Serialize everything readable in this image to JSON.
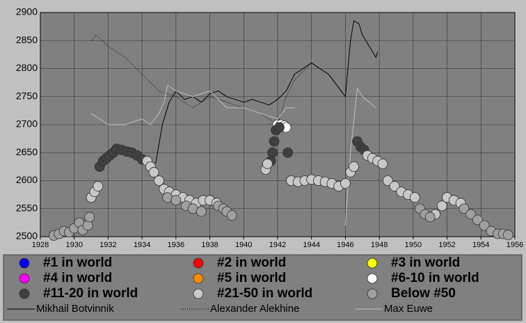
{
  "chart_data": {
    "type": "scatter",
    "xlim": [
      1928,
      1956
    ],
    "xticks": [
      1928,
      1930,
      1932,
      1934,
      1936,
      1938,
      1940,
      1942,
      1944,
      1946,
      1948,
      1950,
      1952,
      1954,
      1956
    ],
    "ylim": [
      2500,
      2900
    ],
    "yticks": [
      2500,
      2550,
      2600,
      2650,
      2700,
      2750,
      2800,
      2850,
      2900
    ],
    "grid": true,
    "series": [
      {
        "name": "#1 in world",
        "color": "#0000ff",
        "type": "scatter",
        "x": [],
        "y": []
      },
      {
        "name": "#2 in world",
        "color": "#ff0000",
        "type": "scatter",
        "x": [],
        "y": []
      },
      {
        "name": "#3 in world",
        "color": "#ffff00",
        "type": "scatter",
        "x": [],
        "y": []
      },
      {
        "name": "#4 in world",
        "color": "#ff00ff",
        "type": "scatter",
        "x": [],
        "y": []
      },
      {
        "name": "#5 in world",
        "color": "#ff8c00",
        "type": "scatter",
        "x": [],
        "y": []
      },
      {
        "name": "#6-10 in world",
        "color": "#ffffff",
        "type": "scatter",
        "x": [
          1942.0,
          1942.2,
          1942.4,
          1942.5
        ],
        "y": [
          2700,
          2700,
          2698,
          2695
        ]
      },
      {
        "name": "#11-20 in world",
        "color": "#404040",
        "type": "scatter",
        "x": [
          1931.5,
          1931.7,
          1931.9,
          1932.1,
          1932.3,
          1932.5,
          1932.8,
          1933.1,
          1933.4,
          1933.7,
          1934,
          1941.6,
          1941.7,
          1941.8,
          1941.9,
          1942.1,
          1942.6,
          1946.7,
          1946.9,
          1947.1
        ],
        "y": [
          2625,
          2635,
          2640,
          2645,
          2650,
          2657,
          2655,
          2652,
          2650,
          2645,
          2638,
          2635,
          2650,
          2670,
          2690,
          2695,
          2650,
          2670,
          2660,
          2655
        ]
      },
      {
        "name": "#21-50 in world",
        "color": "#c8c8c8",
        "type": "scatter",
        "x": [
          1931,
          1931.2,
          1931.4,
          1934.3,
          1934.5,
          1934.7,
          1935,
          1935.3,
          1935.6,
          1936,
          1936.4,
          1936.8,
          1937.2,
          1937.6,
          1938,
          1938.4,
          1941.3,
          1941.4,
          1942.8,
          1943.2,
          1943.6,
          1944,
          1944.4,
          1944.8,
          1945.2,
          1945.6,
          1946.0,
          1946.3,
          1946.5,
          1947.3,
          1947.6,
          1947.9,
          1948.2,
          1948.5,
          1948.9,
          1949.3,
          1949.7,
          1950.1,
          1951.3,
          1951.7,
          1952.0,
          1952.4,
          1952.8
        ],
        "y": [
          2570,
          2580,
          2590,
          2635,
          2625,
          2615,
          2600,
          2585,
          2580,
          2575,
          2570,
          2565,
          2560,
          2565,
          2565,
          2560,
          2620,
          2630,
          2600,
          2598,
          2600,
          2602,
          2600,
          2598,
          2595,
          2590,
          2595,
          2615,
          2625,
          2645,
          2640,
          2635,
          2630,
          2600,
          2590,
          2580,
          2575,
          2570,
          2540,
          2555,
          2570,
          2565,
          2560
        ]
      },
      {
        "name": "Below #50",
        "color": "#a0a0a0",
        "type": "scatter",
        "x": [
          1928.8,
          1929.1,
          1929.4,
          1929.7,
          1930,
          1930.3,
          1930.5,
          1930.8,
          1930.9,
          1935.5,
          1936,
          1936.6,
          1937,
          1937.5,
          1938.5,
          1938.8,
          1939,
          1939.3,
          1950.4,
          1950.7,
          1951,
          1953,
          1953.4,
          1953.8,
          1954.2,
          1954.6,
          1955,
          1955.3,
          1955.6
        ],
        "y": [
          2502,
          2505,
          2510,
          2508,
          2515,
          2525,
          2512,
          2520,
          2535,
          2570,
          2565,
          2555,
          2550,
          2545,
          2555,
          2550,
          2545,
          2538,
          2550,
          2540,
          2535,
          2550,
          2540,
          2530,
          2520,
          2510,
          2505,
          2505,
          2503
        ]
      },
      {
        "name": "Mikhail Botvinnik",
        "color": "#000000",
        "type": "line",
        "dash": "solid",
        "x": [
          1934.8,
          1935.2,
          1935.6,
          1936,
          1936.5,
          1937,
          1937.5,
          1938,
          1938.5,
          1939,
          1939.5,
          1940,
          1940.5,
          1941,
          1941.5,
          1942,
          1942.5,
          1943,
          1943.5,
          1944,
          1944.5,
          1945,
          1945.5,
          1946,
          1946.3,
          1946.5,
          1946.8,
          1947,
          1947.4,
          1947.8,
          1947.9
        ],
        "y": [
          2630,
          2700,
          2740,
          2760,
          2745,
          2750,
          2740,
          2755,
          2760,
          2750,
          2745,
          2740,
          2745,
          2740,
          2735,
          2745,
          2760,
          2790,
          2800,
          2810,
          2800,
          2790,
          2770,
          2750,
          2850,
          2885,
          2880,
          2860,
          2840,
          2820,
          2830
        ]
      },
      {
        "name": "Alexander Alekhine",
        "color": "#000000",
        "type": "line",
        "dash": "dotted",
        "x": [
          1931,
          1931.3,
          1932,
          1933,
          1934,
          1935,
          1936,
          1937,
          1938,
          1939,
          1940,
          1941,
          1942,
          1942.5,
          1943,
          1944,
          1945,
          1946
        ],
        "y": [
          2850,
          2860,
          2840,
          2820,
          2790,
          2760,
          2750,
          2730,
          2750,
          2740,
          2730,
          2720,
          2700,
          2750,
          2780,
          2810,
          2790,
          2750
        ]
      },
      {
        "name": "Max Euwe",
        "color": "#c0c0c0",
        "type": "line",
        "dash": "solid",
        "x": [
          1931,
          1931.5,
          1932,
          1933,
          1934,
          1934.5,
          1935,
          1935.3,
          1935.5,
          1936,
          1937,
          1938,
          1939,
          1940,
          1941,
          1942,
          1942.5,
          1943,
          null,
          1946,
          1946.3,
          1946.7,
          1947,
          1947.8
        ],
        "y": [
          2720,
          2710,
          2700,
          2700,
          2710,
          2700,
          2720,
          2740,
          2770,
          2760,
          2750,
          2760,
          2730,
          2730,
          2720,
          2710,
          2730,
          2730,
          null,
          2520,
          2650,
          2765,
          2750,
          2730
        ]
      }
    ]
  }
}
